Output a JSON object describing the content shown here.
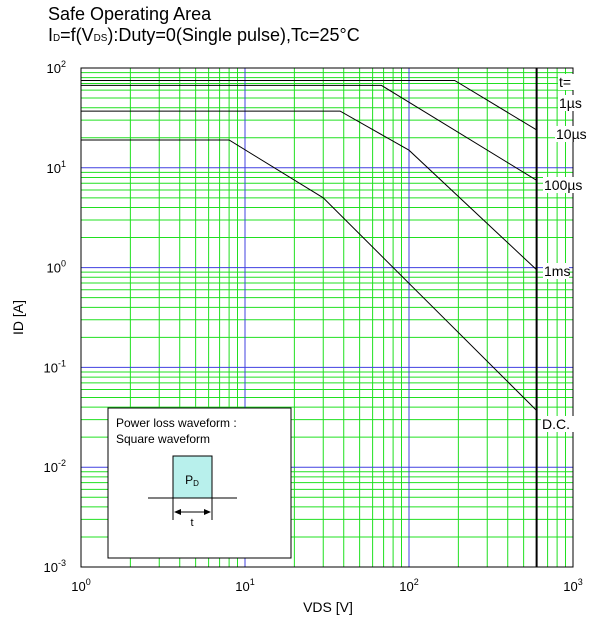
{
  "chart_data": {
    "type": "line",
    "title": "Safe Operating Area",
    "subtitle_parts": {
      "p1": "I",
      "p1_sub": "D",
      "p2": "=f(V",
      "p2_sub": "DS",
      "p3": "):Duty=0(Single pulse),Tc=25°C"
    },
    "xlabel": "VDS [V]",
    "ylabel": "ID [A]",
    "x_scale": "log",
    "y_scale": "log",
    "xlim": [
      1,
      1000
    ],
    "ylim": [
      0.001,
      100
    ],
    "x_tick_labels": [
      {
        "value": 1,
        "base": "10",
        "exp": "0"
      },
      {
        "value": 10,
        "base": "10",
        "exp": "1"
      },
      {
        "value": 100,
        "base": "10",
        "exp": "2"
      },
      {
        "value": 1000,
        "base": "10",
        "exp": "3"
      }
    ],
    "y_tick_labels": [
      {
        "value": 0.001,
        "base": "10",
        "exp": "-3"
      },
      {
        "value": 0.01,
        "base": "10",
        "exp": "-2"
      },
      {
        "value": 0.1,
        "base": "10",
        "exp": "-1"
      },
      {
        "value": 1,
        "base": "10",
        "exp": "0"
      },
      {
        "value": 10,
        "base": "10",
        "exp": "1"
      },
      {
        "value": 100,
        "base": "10",
        "exp": "2"
      }
    ],
    "grid": true,
    "vmax_line": 600,
    "series": [
      {
        "name": "1µs",
        "label_lines": [
          "t=",
          "1µs"
        ],
        "points": [
          [
            1,
            75
          ],
          [
            190,
            75
          ],
          [
            600,
            24
          ]
        ]
      },
      {
        "name": "10µs",
        "label_lines": [
          "10µs"
        ],
        "points": [
          [
            1,
            67
          ],
          [
            68,
            67
          ],
          [
            600,
            7.5
          ]
        ]
      },
      {
        "name": "100µs",
        "label_lines": [
          "100µs"
        ],
        "points": [
          [
            1,
            37
          ],
          [
            38,
            37
          ],
          [
            100,
            15
          ],
          [
            600,
            0.95
          ]
        ]
      },
      {
        "name": "1ms",
        "label_lines": [
          "1ms"
        ],
        "points": [
          [
            1,
            19
          ],
          [
            8,
            19
          ],
          [
            30,
            5
          ],
          [
            600,
            0.037
          ]
        ]
      },
      {
        "name": "D.C.",
        "label_lines": [
          "D.C."
        ],
        "points": []
      }
    ],
    "inset": {
      "line1": "Power loss waveform :",
      "line2": "Square waveform",
      "pulse_label": "P",
      "pulse_label_sub": "D",
      "time_label": "t"
    },
    "colors": {
      "grid_major": "#4040e0",
      "grid_minor": "#20e020",
      "curve": "#000000",
      "pulse_fill": "#b8f0ec"
    }
  }
}
